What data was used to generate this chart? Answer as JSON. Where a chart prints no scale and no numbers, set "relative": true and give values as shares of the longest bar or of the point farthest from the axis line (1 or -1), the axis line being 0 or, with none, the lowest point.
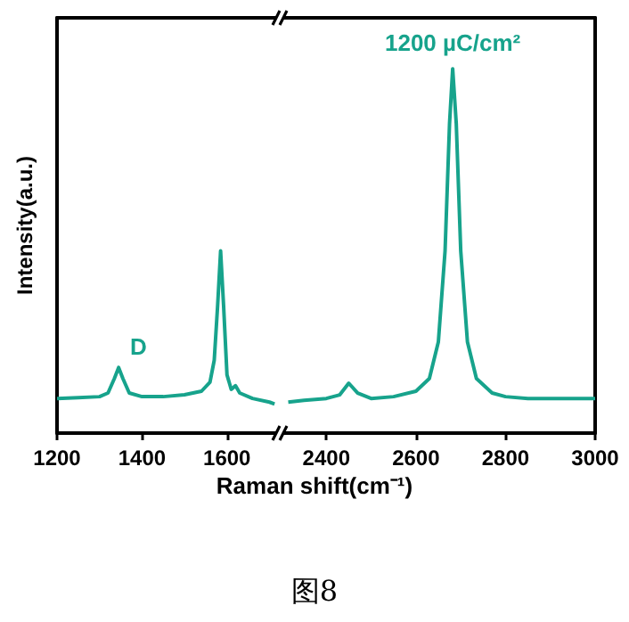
{
  "chart_data": [
    {
      "type": "line",
      "ylabel": "Intensity(a.u.)",
      "relative": true,
      "xlim": [
        1200,
        1720
      ],
      "xticks": [
        1200,
        1400,
        1600
      ],
      "annotations": [
        "D"
      ],
      "series": [
        {
          "color": "#17a38c",
          "x": [
            1200,
            1250,
            1300,
            1320,
            1335,
            1345,
            1355,
            1370,
            1400,
            1450,
            1500,
            1540,
            1560,
            1570,
            1578,
            1585,
            1592,
            1600,
            1610,
            1620,
            1630,
            1660,
            1700,
            1712
          ],
          "values": [
            0.19,
            0.194,
            0.2,
            0.22,
            0.3,
            0.36,
            0.3,
            0.22,
            0.2,
            0.2,
            0.21,
            0.23,
            0.28,
            0.4,
            0.7,
            1,
            0.7,
            0.32,
            0.24,
            0.26,
            0.22,
            0.19,
            0.17,
            0.16
          ]
        }
      ]
    },
    {
      "type": "line",
      "xlabel": "Raman shift(cm⁻¹)",
      "relative": true,
      "xlim": [
        2300,
        3000
      ],
      "xticks": [
        2400,
        2600,
        2800,
        3000
      ],
      "annotations": [
        "图8"
      ],
      "series": [
        {
          "name": "1200 µC/cm²",
          "color": "#17a38c",
          "x": [
            2315,
            2350,
            2400,
            2430,
            2450,
            2470,
            2500,
            2550,
            2600,
            2630,
            2650,
            2665,
            2675,
            2682,
            2690,
            2700,
            2715,
            2735,
            2770,
            2800,
            2850,
            2900,
            2950,
            3000
          ],
          "values": [
            0.085,
            0.09,
            0.095,
            0.105,
            0.137,
            0.11,
            0.095,
            0.1,
            0.115,
            0.15,
            0.25,
            0.5,
            0.85,
            1,
            0.85,
            0.5,
            0.25,
            0.15,
            0.11,
            0.1,
            0.095,
            0.095,
            0.095,
            0.095
          ]
        }
      ]
    }
  ]
}
